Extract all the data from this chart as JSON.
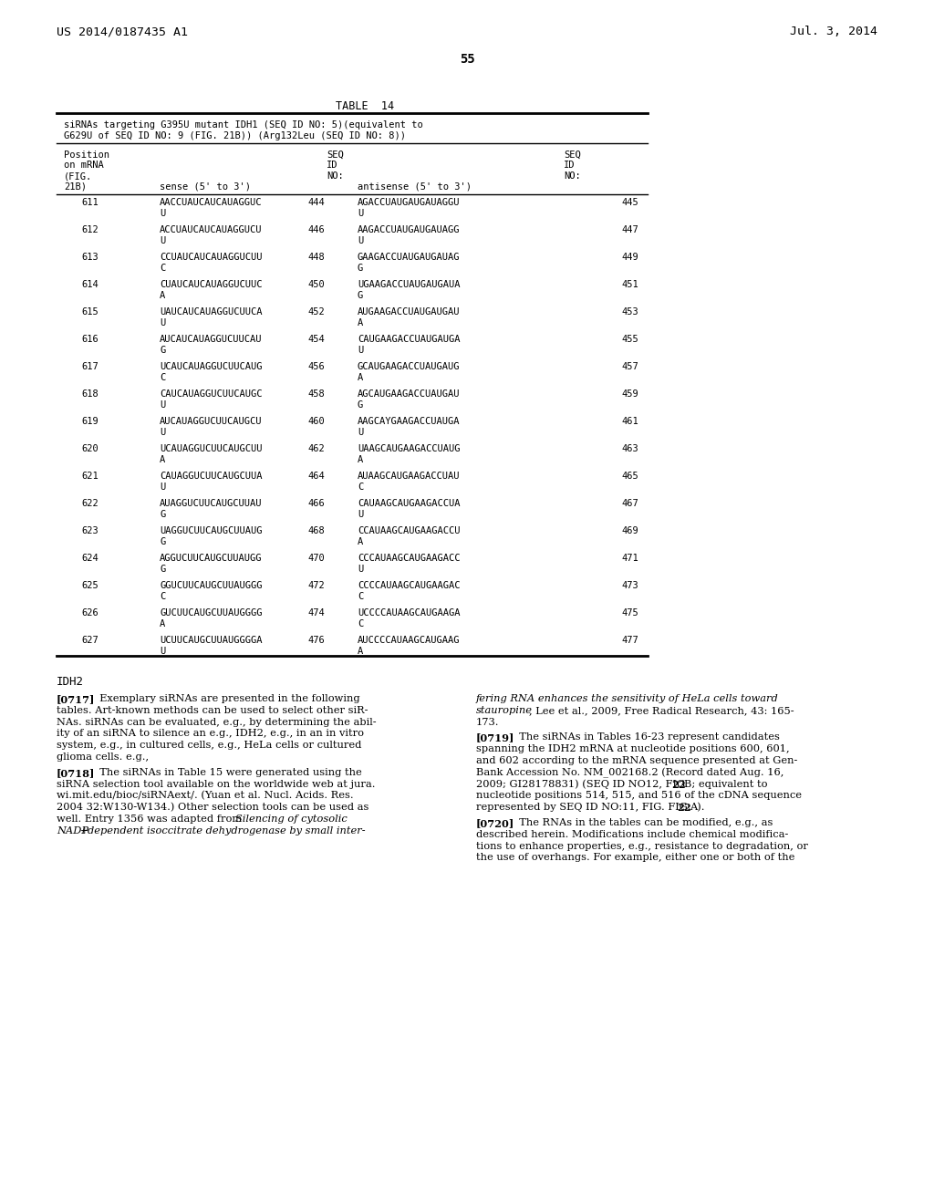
{
  "header_left": "US 2014/0187435 A1",
  "header_right": "Jul. 3, 2014",
  "page_num": "55",
  "table_title": "TABLE  14",
  "table_subtitle_line1": "siRNAs targeting G395U mutant IDH1 (SEQ ID NO: 5)(equivalent to",
  "table_subtitle_line2": "G629U of SEQ ID NO: 9 (FIG. 21B)) (Arg132Leu (SEQ ID NO: 8))",
  "table_rows": [
    {
      "pos": "611",
      "sense1": "AACCUAUCAUCAUAGGUC",
      "sense2": "U",
      "seq1": "444",
      "anti1": "AGACCUAUGAUGAUAGGU",
      "anti2": "U",
      "seq2": "445"
    },
    {
      "pos": "612",
      "sense1": "ACCUAUCAUCAUAGGUCU",
      "sense2": "U",
      "seq1": "446",
      "anti1": "AAGACCUAUGAUGAUAGG",
      "anti2": "U",
      "seq2": "447"
    },
    {
      "pos": "613",
      "sense1": "CCUAUCAUCAUAGGUCUU",
      "sense2": "C",
      "seq1": "448",
      "anti1": "GAAGACCUAUGAUGAUAG",
      "anti2": "G",
      "seq2": "449"
    },
    {
      "pos": "614",
      "sense1": "CUAUCAUCAUAGGUCUUC",
      "sense2": "A",
      "seq1": "450",
      "anti1": "UGAAGACCUAUGAUGAUA",
      "anti2": "G",
      "seq2": "451"
    },
    {
      "pos": "615",
      "sense1": "UAUCAUCAUAGGUCUUCA",
      "sense2": "U",
      "seq1": "452",
      "anti1": "AUGAAGACCUAUGAUGAU",
      "anti2": "A",
      "seq2": "453"
    },
    {
      "pos": "616",
      "sense1": "AUCAUCAUAGGUCUUCAU",
      "sense2": "G",
      "seq1": "454",
      "anti1": "CAUGAAGACCUAUGAUGA",
      "anti2": "U",
      "seq2": "455"
    },
    {
      "pos": "617",
      "sense1": "UCAUCAUAGGUCUUCAUG",
      "sense2": "C",
      "seq1": "456",
      "anti1": "GCAUGAAGACCUAUGAUG",
      "anti2": "A",
      "seq2": "457"
    },
    {
      "pos": "618",
      "sense1": "CAUCAUAGGUCUUCAUGC",
      "sense2": "U",
      "seq1": "458",
      "anti1": "AGCAUGAAGACCUAUGAU",
      "anti2": "G",
      "seq2": "459"
    },
    {
      "pos": "619",
      "sense1": "AUCAUAGGUCUUCAUGCU",
      "sense2": "U",
      "seq1": "460",
      "anti1": "AAGCAYGAAGACCUAUGA",
      "anti2": "U",
      "seq2": "461"
    },
    {
      "pos": "620",
      "sense1": "UCAUAGGUCUUCAUGCUU",
      "sense2": "A",
      "seq1": "462",
      "anti1": "UAAGCAUGAAGACCUAUG",
      "anti2": "A",
      "seq2": "463"
    },
    {
      "pos": "621",
      "sense1": "CAUAGGUCUUCAUGCUUA",
      "sense2": "U",
      "seq1": "464",
      "anti1": "AUAAGCAUGAAGACCUAU",
      "anti2": "C",
      "seq2": "465"
    },
    {
      "pos": "622",
      "sense1": "AUAGGUCUUCAUGCUUAU",
      "sense2": "G",
      "seq1": "466",
      "anti1": "CAUAAGCAUGAAGACCUA",
      "anti2": "U",
      "seq2": "467"
    },
    {
      "pos": "623",
      "sense1": "UAGGUCUUCAUGCUUAUG",
      "sense2": "G",
      "seq1": "468",
      "anti1": "CCAUAAGCAUGAAGACCU",
      "anti2": "A",
      "seq2": "469"
    },
    {
      "pos": "624",
      "sense1": "AGGUCUUCAUGCUUAUGG",
      "sense2": "G",
      "seq1": "470",
      "anti1": "CCCAUAAGCAUGAAGACC",
      "anti2": "U",
      "seq2": "471"
    },
    {
      "pos": "625",
      "sense1": "GGUCUUCAUGCUUAUGGG",
      "sense2": "C",
      "seq1": "472",
      "anti1": "CCCCAUAAGCAUGAAGAC",
      "anti2": "C",
      "seq2": "473"
    },
    {
      "pos": "626",
      "sense1": "GUCUUCAUGCUUAUGGGG",
      "sense2": "A",
      "seq1": "474",
      "anti1": "UCCCCAUAAGCAUGAAGA",
      "anti2": "C",
      "seq2": "475"
    },
    {
      "pos": "627",
      "sense1": "UCUUCAUGCUUAUGGGGA",
      "sense2": "U",
      "seq1": "476",
      "anti1": "AUCCCCAUAAGCAUGAAG",
      "anti2": "A",
      "seq2": "477"
    }
  ],
  "bg_color": "#ffffff",
  "text_color": "#000000"
}
